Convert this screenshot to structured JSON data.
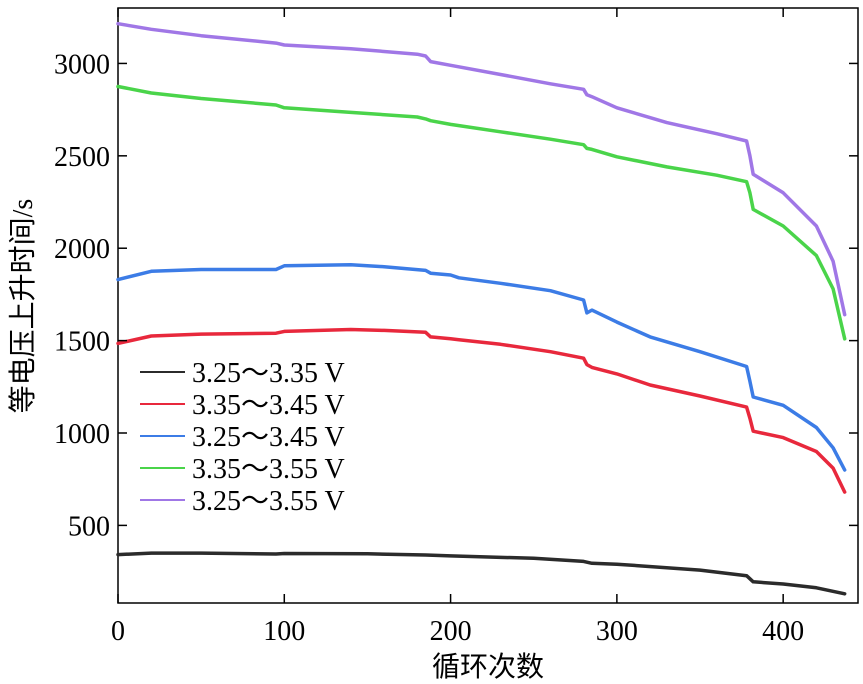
{
  "chart_data": {
    "type": "line",
    "title": "",
    "xlabel": "循环次数",
    "ylabel": "等电压上升时间/s",
    "xlim": [
      0,
      445
    ],
    "ylim": [
      80,
      3300
    ],
    "x_ticks": [
      0,
      100,
      200,
      300,
      400
    ],
    "y_ticks": [
      500,
      1000,
      1500,
      2000,
      2500,
      3000
    ],
    "grid": false,
    "legend_position": "center-left",
    "series": [
      {
        "name": "3.25～3.35 V",
        "color": "#2b2b2b",
        "x": [
          0,
          20,
          50,
          95,
          100,
          150,
          185,
          200,
          250,
          280,
          285,
          300,
          350,
          378,
          382,
          400,
          420,
          437
        ],
        "y": [
          342,
          350,
          350,
          345,
          348,
          346,
          340,
          335,
          322,
          305,
          295,
          290,
          258,
          228,
          195,
          183,
          162,
          130
        ]
      },
      {
        "name": "3.35～3.45 V",
        "color": "#e8283c",
        "x": [
          0,
          20,
          50,
          95,
          100,
          140,
          160,
          185,
          188,
          200,
          205,
          230,
          260,
          280,
          282,
          285,
          300,
          320,
          350,
          378,
          380,
          382,
          400,
          420,
          430,
          437
        ],
        "y": [
          1485,
          1525,
          1535,
          1540,
          1550,
          1560,
          1555,
          1545,
          1520,
          1510,
          1505,
          1480,
          1440,
          1405,
          1370,
          1355,
          1320,
          1260,
          1200,
          1140,
          1080,
          1010,
          975,
          900,
          810,
          680
        ]
      },
      {
        "name": "3.25～3.45 V",
        "color": "#3c7ce6",
        "x": [
          0,
          20,
          50,
          95,
          100,
          140,
          160,
          185,
          188,
          200,
          205,
          230,
          260,
          280,
          282,
          285,
          300,
          320,
          350,
          378,
          380,
          382,
          400,
          420,
          430,
          437
        ],
        "y": [
          1830,
          1875,
          1885,
          1885,
          1905,
          1910,
          1900,
          1880,
          1865,
          1855,
          1840,
          1810,
          1770,
          1720,
          1650,
          1665,
          1600,
          1520,
          1440,
          1360,
          1280,
          1195,
          1150,
          1030,
          920,
          800
        ]
      },
      {
        "name": "3.35～3.55 V",
        "color": "#4ad44a",
        "x": [
          0,
          20,
          50,
          95,
          100,
          140,
          180,
          185,
          188,
          200,
          230,
          260,
          280,
          282,
          285,
          300,
          330,
          360,
          378,
          380,
          382,
          400,
          420,
          430,
          437
        ],
        "y": [
          2875,
          2840,
          2810,
          2775,
          2760,
          2735,
          2710,
          2700,
          2690,
          2670,
          2630,
          2590,
          2560,
          2540,
          2535,
          2495,
          2440,
          2395,
          2360,
          2300,
          2210,
          2120,
          1960,
          1780,
          1510
        ]
      },
      {
        "name": "3.25～3.55 V",
        "color": "#a077e6",
        "x": [
          0,
          20,
          50,
          95,
          100,
          140,
          180,
          185,
          188,
          200,
          230,
          260,
          280,
          282,
          285,
          300,
          330,
          360,
          378,
          380,
          382,
          400,
          420,
          430,
          437
        ],
        "y": [
          3215,
          3185,
          3150,
          3110,
          3100,
          3080,
          3050,
          3040,
          3010,
          2990,
          2940,
          2890,
          2860,
          2830,
          2820,
          2760,
          2680,
          2620,
          2580,
          2500,
          2400,
          2300,
          2120,
          1930,
          1640
        ]
      }
    ]
  }
}
